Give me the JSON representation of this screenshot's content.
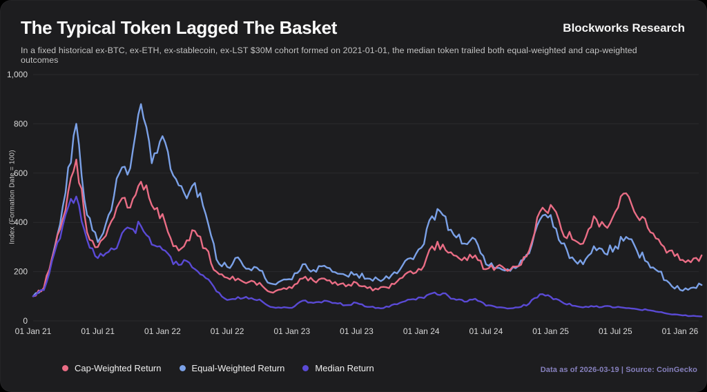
{
  "header": {
    "title": "The Typical Token Lagged The Basket",
    "subtitle": "In a fixed historical ex-BTC, ex-ETH, ex-stablecoin, ex-LST $30M cohort formed on 2021-01-01, the median token trailed both equal-weighted and cap-weighted outcomes",
    "brand": "Blockworks Research"
  },
  "footer": {
    "note": "Data as of 2026-03-19 | Source: CoinGecko"
  },
  "colors": {
    "background": "#1d1d1f",
    "grid": "#2b2b2e",
    "tick_text": "#d9d9d9",
    "cap_weighted": "#ea6d85",
    "equal_weighted": "#7ba1e7",
    "median": "#5a4ad5",
    "footer_text": "#8680bd"
  },
  "chart_data": {
    "type": "line",
    "title": "The Typical Token Lagged The Basket",
    "xlabel": "",
    "ylabel": "Index (Formation Date = 100)",
    "ylim": [
      0,
      1000
    ],
    "grid": "horizontal-only",
    "legend_position": "bottom-left",
    "x_unit": "month",
    "x_start": "2021-01",
    "x_end": "2026-03",
    "yticks": [
      {
        "v": 0,
        "label": "0"
      },
      {
        "v": 200,
        "label": "200"
      },
      {
        "v": 400,
        "label": "400"
      },
      {
        "v": 600,
        "label": "600"
      },
      {
        "v": 800,
        "label": "800"
      },
      {
        "v": 1000,
        "label": "1,000"
      }
    ],
    "xticks": [
      {
        "m": 0,
        "label": "01 Jan 21"
      },
      {
        "m": 6,
        "label": "01 Jul 21"
      },
      {
        "m": 12,
        "label": "01 Jan 22"
      },
      {
        "m": 18,
        "label": "01 Jul 22"
      },
      {
        "m": 24,
        "label": "01 Jan 23"
      },
      {
        "m": 30,
        "label": "01 Jul 23"
      },
      {
        "m": 36,
        "label": "01 Jan 24"
      },
      {
        "m": 42,
        "label": "01 Jul 24"
      },
      {
        "m": 48,
        "label": "01 Jan 25"
      },
      {
        "m": 54,
        "label": "01 Jul 25"
      },
      {
        "m": 60,
        "label": "01 Jan 26"
      }
    ],
    "months": [
      "2021-01",
      "2021-02",
      "2021-03",
      "2021-04",
      "2021-05",
      "2021-06",
      "2021-07",
      "2021-08",
      "2021-09",
      "2021-10",
      "2021-11",
      "2021-12",
      "2022-01",
      "2022-02",
      "2022-03",
      "2022-04",
      "2022-05",
      "2022-06",
      "2022-07",
      "2022-08",
      "2022-09",
      "2022-10",
      "2022-11",
      "2022-12",
      "2023-01",
      "2023-02",
      "2023-03",
      "2023-04",
      "2023-05",
      "2023-06",
      "2023-07",
      "2023-08",
      "2023-09",
      "2023-10",
      "2023-11",
      "2023-12",
      "2024-01",
      "2024-02",
      "2024-03",
      "2024-04",
      "2024-05",
      "2024-06",
      "2024-07",
      "2024-08",
      "2024-09",
      "2024-10",
      "2024-11",
      "2024-12",
      "2025-01",
      "2025-02",
      "2025-03",
      "2025-04",
      "2025-05",
      "2025-06",
      "2025-07",
      "2025-08",
      "2025-09",
      "2025-10",
      "2025-11",
      "2025-12",
      "2026-01",
      "2026-02",
      "2026-03"
    ],
    "series": [
      {
        "name": "Cap-Weighted Return",
        "color": "#ea6d85",
        "values": [
          100,
          135,
          290,
          450,
          655,
          360,
          300,
          380,
          480,
          460,
          565,
          470,
          434,
          303,
          303,
          365,
          294,
          200,
          175,
          172,
          158,
          155,
          117,
          128,
          133,
          172,
          163,
          172,
          158,
          140,
          155,
          133,
          128,
          133,
          172,
          202,
          207,
          303,
          310,
          266,
          258,
          266,
          210,
          220,
          203,
          222,
          285,
          443,
          471,
          370,
          331,
          314,
          425,
          387,
          443,
          518,
          425,
          378,
          331,
          285,
          247,
          238,
          266
        ]
      },
      {
        "name": "Equal-Weighted Return",
        "color": "#7ba1e7",
        "values": [
          100,
          130,
          300,
          520,
          800,
          430,
          320,
          430,
          600,
          620,
          880,
          640,
          750,
          590,
          520,
          560,
          434,
          250,
          219,
          258,
          212,
          205,
          152,
          163,
          168,
          230,
          207,
          224,
          198,
          185,
          190,
          172,
          168,
          172,
          207,
          255,
          297,
          425,
          430,
          350,
          314,
          331,
          230,
          215,
          210,
          222,
          274,
          411,
          430,
          314,
          258,
          230,
          303,
          274,
          303,
          341,
          285,
          238,
          200,
          154,
          126,
          134,
          146
        ]
      },
      {
        "name": "Median Return",
        "color": "#5a4ad5",
        "values": [
          100,
          125,
          280,
          430,
          505,
          330,
          255,
          280,
          325,
          375,
          385,
          310,
          289,
          230,
          247,
          210,
          174,
          120,
          85,
          97,
          90,
          87,
          57,
          53,
          53,
          82,
          73,
          82,
          73,
          64,
          73,
          57,
          53,
          57,
          73,
          87,
          95,
          112,
          112,
          90,
          78,
          90,
          62,
          55,
          50,
          55,
          70,
          108,
          98,
          78,
          62,
          55,
          58,
          60,
          55,
          52,
          48,
          44,
          36,
          28,
          24,
          20,
          18
        ]
      }
    ]
  }
}
